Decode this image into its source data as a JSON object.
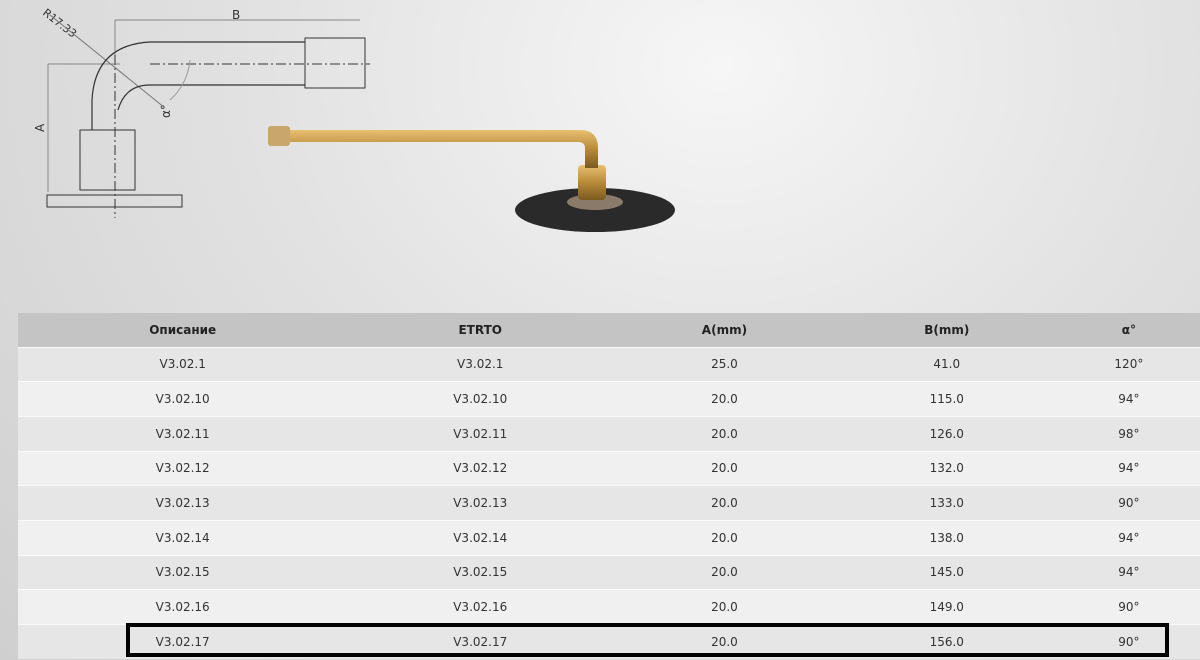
{
  "drawing": {
    "labels": {
      "a": "A",
      "b": "B",
      "radius": "R17.33",
      "angle": "α°"
    }
  },
  "table": {
    "headers": [
      "Описание",
      "ETRTO",
      "A(mm)",
      "B(mm)",
      "α°"
    ],
    "rows": [
      [
        "V3.02.1",
        "V3.02.1",
        "25.0",
        "41.0",
        "120°"
      ],
      [
        "V3.02.10",
        "V3.02.10",
        "20.0",
        "115.0",
        "94°"
      ],
      [
        "V3.02.11",
        "V3.02.11",
        "20.0",
        "126.0",
        "98°"
      ],
      [
        "V3.02.12",
        "V3.02.12",
        "20.0",
        "132.0",
        "94°"
      ],
      [
        "V3.02.13",
        "V3.02.13",
        "20.0",
        "133.0",
        "90°"
      ],
      [
        "V3.02.14",
        "V3.02.14",
        "20.0",
        "138.0",
        "94°"
      ],
      [
        "V3.02.15",
        "V3.02.15",
        "20.0",
        "145.0",
        "94°"
      ],
      [
        "V3.02.16",
        "V3.02.16",
        "20.0",
        "149.0",
        "90°"
      ],
      [
        "V3.02.17",
        "V3.02.17",
        "20.0",
        "156.0",
        "90°"
      ]
    ],
    "highlighted_row": 8
  }
}
